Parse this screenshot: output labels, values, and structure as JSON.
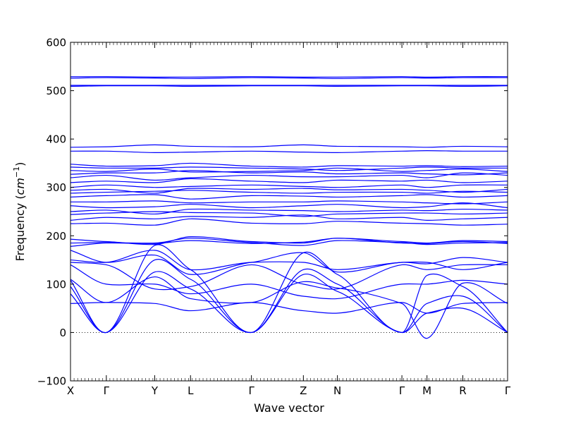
{
  "chart_data": {
    "type": "line",
    "title": "",
    "xlabel": "Wave vector",
    "ylabel_text": "Frequency (",
    "ylabel_unit_base": "cm",
    "ylabel_unit_exp": "−1",
    "ylabel_close": ")",
    "ylim": [
      -100,
      600
    ],
    "yticks": [
      -100,
      0,
      100,
      200,
      300,
      400,
      500,
      600
    ],
    "ytick_labels": [
      "−100",
      "0",
      "100",
      "200",
      "300",
      "400",
      "500",
      "600"
    ],
    "xlim": [
      0,
      12.2
    ],
    "high_symmetry_points": [
      {
        "label": "X",
        "x": 0.0
      },
      {
        "label": "Γ",
        "x": 1.0
      },
      {
        "label": "Y",
        "x": 2.35
      },
      {
        "label": "L",
        "x": 3.35
      },
      {
        "label": "Γ",
        "x": 5.05
      },
      {
        "label": "Z",
        "x": 6.5
      },
      {
        "label": "N",
        "x": 7.45
      },
      {
        "label": "Γ",
        "x": 9.25
      },
      {
        "label": "M",
        "x": 9.95
      },
      {
        "label": "R",
        "x": 10.95
      },
      {
        "label": "Γ",
        "x": 12.2
      }
    ],
    "zero_line": {
      "y": 0,
      "style": "dotted"
    },
    "line_color": "#0000ff",
    "bands_at_points": [
      [
        108,
        0,
        180,
        130,
        0,
        165,
        120,
        0,
        118,
        95,
        0
      ],
      [
        95,
        0,
        150,
        110,
        0,
        130,
        100,
        0,
        60,
        75,
        0
      ],
      [
        80,
        0,
        125,
        90,
        0,
        120,
        85,
        0,
        40,
        50,
        0
      ],
      [
        110,
        62,
        115,
        70,
        62,
        105,
        92,
        60,
        -12,
        102,
        60
      ],
      [
        60,
        62,
        60,
        45,
        62,
        45,
        40,
        62,
        40,
        60,
        62
      ],
      [
        140,
        100,
        100,
        80,
        100,
        75,
        70,
        100,
        100,
        108,
        100
      ],
      [
        145,
        140,
        90,
        95,
        140,
        100,
        90,
        140,
        130,
        140,
        140
      ],
      [
        150,
        145,
        170,
        130,
        145,
        145,
        130,
        145,
        145,
        130,
        145
      ],
      [
        170,
        145,
        160,
        120,
        145,
        165,
        125,
        145,
        142,
        155,
        145
      ],
      [
        178,
        185,
        184,
        190,
        184,
        187,
        195,
        185,
        184,
        188,
        184
      ],
      [
        185,
        186,
        185,
        195,
        186,
        180,
        190,
        186,
        182,
        185,
        186
      ],
      [
        193,
        188,
        182,
        198,
        188,
        185,
        195,
        188,
        185,
        190,
        188
      ],
      [
        225,
        226,
        222,
        235,
        226,
        225,
        230,
        226,
        225,
        222,
        224
      ],
      [
        232,
        238,
        235,
        240,
        238,
        243,
        235,
        238,
        232,
        235,
        238
      ],
      [
        244,
        247,
        250,
        248,
        247,
        240,
        245,
        247,
        247,
        245,
        247
      ],
      [
        250,
        253,
        245,
        255,
        253,
        252,
        250,
        253,
        252,
        255,
        253
      ],
      [
        262,
        258,
        260,
        265,
        258,
        262,
        265,
        258,
        260,
        268,
        258
      ],
      [
        270,
        270,
        272,
        268,
        270,
        270,
        272,
        270,
        268,
        266,
        270
      ],
      [
        280,
        283,
        285,
        276,
        283,
        282,
        280,
        283,
        285,
        280,
        283
      ],
      [
        288,
        290,
        292,
        294,
        290,
        288,
        290,
        290,
        288,
        292,
        290
      ],
      [
        294,
        296,
        288,
        298,
        296,
        298,
        295,
        296,
        294,
        290,
        296
      ],
      [
        300,
        305,
        300,
        302,
        305,
        302,
        300,
        305,
        300,
        305,
        305
      ],
      [
        310,
        313,
        310,
        318,
        313,
        310,
        315,
        313,
        315,
        310,
        313
      ],
      [
        320,
        325,
        315,
        320,
        325,
        322,
        322,
        325,
        320,
        330,
        325
      ],
      [
        327,
        330,
        330,
        335,
        330,
        332,
        328,
        330,
        328,
        326,
        330
      ],
      [
        335,
        333,
        338,
        332,
        333,
        335,
        340,
        333,
        335,
        338,
        333
      ],
      [
        342,
        340,
        340,
        342,
        340,
        338,
        335,
        340,
        342,
        340,
        340
      ],
      [
        348,
        344,
        345,
        350,
        344,
        342,
        345,
        344,
        345,
        343,
        344
      ],
      [
        375,
        375,
        372,
        373,
        375,
        373,
        372,
        375,
        376,
        375,
        375
      ],
      [
        383,
        384,
        388,
        385,
        384,
        388,
        385,
        384,
        383,
        385,
        384
      ],
      [
        509,
        510,
        510,
        509,
        510,
        510,
        509,
        510,
        510,
        509,
        510
      ],
      [
        511,
        511,
        511,
        511,
        511,
        511,
        511,
        511,
        511,
        511,
        511
      ],
      [
        526,
        527,
        526,
        525,
        527,
        526,
        525,
        527,
        526,
        527,
        527
      ],
      [
        529,
        529,
        528,
        528,
        529,
        528,
        528,
        529,
        528,
        529,
        529
      ]
    ]
  }
}
